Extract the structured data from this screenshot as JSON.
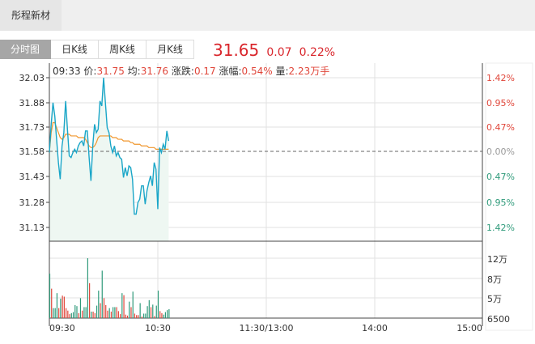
{
  "header": {
    "title": "彤程新材"
  },
  "tabs": [
    {
      "label": "分时图",
      "active": true
    },
    {
      "label": "日K线"
    },
    {
      "label": "周K线"
    },
    {
      "label": "月K线"
    }
  ],
  "quote": {
    "price": "31.65",
    "change": "0.07",
    "change_pct": "0.22%"
  },
  "info": {
    "time": "09:33",
    "price_label": "价:",
    "price": "31.75",
    "avg_label": "均:",
    "avg": "31.76",
    "chg_label": "涨跌:",
    "chg": "0.17",
    "pct_label": "涨幅:",
    "pct": "0.54%",
    "vol_label": "量:",
    "vol": "2.23万手"
  },
  "colors": {
    "up": "#e0463a",
    "down": "#2e9a7a",
    "price_line": "#1aa6c8",
    "avg_line": "#f0962c",
    "fill": "#eef7f2"
  },
  "chart_data": {
    "type": "line",
    "price_axis": {
      "ticks": [
        "32.03",
        "31.88",
        "31.73",
        "31.58",
        "31.43",
        "31.28",
        "31.13"
      ],
      "range": [
        31.13,
        32.03
      ],
      "prev_close": 31.58
    },
    "pct_axis": {
      "ticks": [
        {
          "label": "1.42%",
          "dir": "up"
        },
        {
          "label": "0.95%",
          "dir": "up"
        },
        {
          "label": "0.47%",
          "dir": "up"
        },
        {
          "label": "0.00%",
          "dir": "flat"
        },
        {
          "label": "0.47%",
          "dir": "down"
        },
        {
          "label": "0.95%",
          "dir": "down"
        },
        {
          "label": "1.42%",
          "dir": "down"
        }
      ]
    },
    "volume_axis": {
      "ticks": [
        "12万",
        "8万",
        "5万",
        "6500"
      ]
    },
    "time_axis": {
      "ticks": [
        "09:30",
        "10:30",
        "11:30/13:00",
        "14:00",
        "15:00"
      ]
    },
    "price": [
      31.58,
      31.75,
      31.88,
      31.8,
      31.66,
      31.52,
      31.42,
      31.62,
      31.7,
      31.89,
      31.72,
      31.56,
      31.55,
      31.58,
      31.6,
      31.58,
      31.62,
      31.64,
      31.65,
      31.62,
      31.71,
      31.71,
      31.55,
      31.41,
      31.62,
      31.75,
      31.7,
      31.72,
      31.89,
      31.86,
      32.03,
      31.88,
      31.73,
      31.7,
      31.62,
      31.58,
      31.62,
      31.56,
      31.58,
      31.55,
      31.54,
      31.43,
      31.49,
      31.44,
      31.5,
      31.49,
      31.42,
      31.21,
      31.21,
      31.28,
      31.3,
      31.38,
      31.38,
      31.27,
      31.35,
      31.4,
      31.44,
      31.38,
      31.52,
      31.48,
      31.24,
      31.61,
      31.58,
      31.63,
      31.6,
      31.71,
      31.65
    ],
    "avg": [
      31.58,
      31.7,
      31.76,
      31.76,
      31.73,
      31.7,
      31.67,
      31.66,
      31.67,
      31.69,
      31.69,
      31.69,
      31.68,
      31.68,
      31.68,
      31.68,
      31.67,
      31.67,
      31.67,
      31.67,
      31.66,
      31.64,
      31.62,
      31.61,
      31.61,
      31.62,
      31.64,
      31.67,
      31.68,
      31.68,
      31.68,
      31.68,
      31.68,
      31.68,
      31.68,
      31.67,
      31.67,
      31.67,
      31.66,
      31.66,
      31.66,
      31.65,
      31.65,
      31.65,
      31.65,
      31.64,
      31.64,
      31.63,
      31.63,
      31.63,
      31.63,
      31.62,
      31.62,
      31.62,
      31.62,
      31.61,
      31.61,
      31.61,
      31.61,
      31.6,
      31.6,
      31.6,
      31.6,
      31.6,
      31.6,
      31.6,
      31.6
    ],
    "volume_wan": [
      8.9,
      5.9,
      2,
      2,
      5,
      2,
      3.9,
      4.5,
      4.3,
      2,
      1.5,
      0.8,
      1,
      1.2,
      2.6,
      2.4,
      1,
      4,
      1.5,
      2.2,
      2.2,
      12,
      7,
      1.3,
      1.3,
      1,
      2.5,
      5.5,
      3,
      9.5,
      4,
      2.6,
      1.5,
      2,
      1.3,
      2.2,
      2.2,
      2.2,
      1.4,
      0.8,
      5,
      4.6,
      0.7,
      0.5,
      3.3,
      2.2,
      5.3,
      0.9,
      0.6,
      0.6,
      3,
      0.3,
      0.9,
      0.9,
      2.4,
      3.6,
      2.2,
      2.7,
      0.4,
      2.5,
      5.5,
      1.4,
      1,
      0.7,
      1.2,
      1.6,
      1.8
    ],
    "volume_dir": [
      "d",
      "u",
      "d",
      "d",
      "d",
      "u",
      "d",
      "u",
      "u",
      "u",
      "u",
      "u",
      "d",
      "d",
      "d",
      "d",
      "u",
      "d",
      "u",
      "d",
      "d",
      "d",
      "u",
      "d",
      "u",
      "u",
      "d",
      "d",
      "u",
      "d",
      "u",
      "u",
      "u",
      "d",
      "u",
      "d",
      "d",
      "u",
      "u",
      "u",
      "d",
      "u",
      "u",
      "u",
      "d",
      "u",
      "d",
      "u",
      "u",
      "u",
      "d",
      "u",
      "d",
      "d",
      "d",
      "d",
      "u",
      "d",
      "u",
      "d",
      "d",
      "u",
      "u",
      "d",
      "d",
      "d",
      "d"
    ]
  }
}
